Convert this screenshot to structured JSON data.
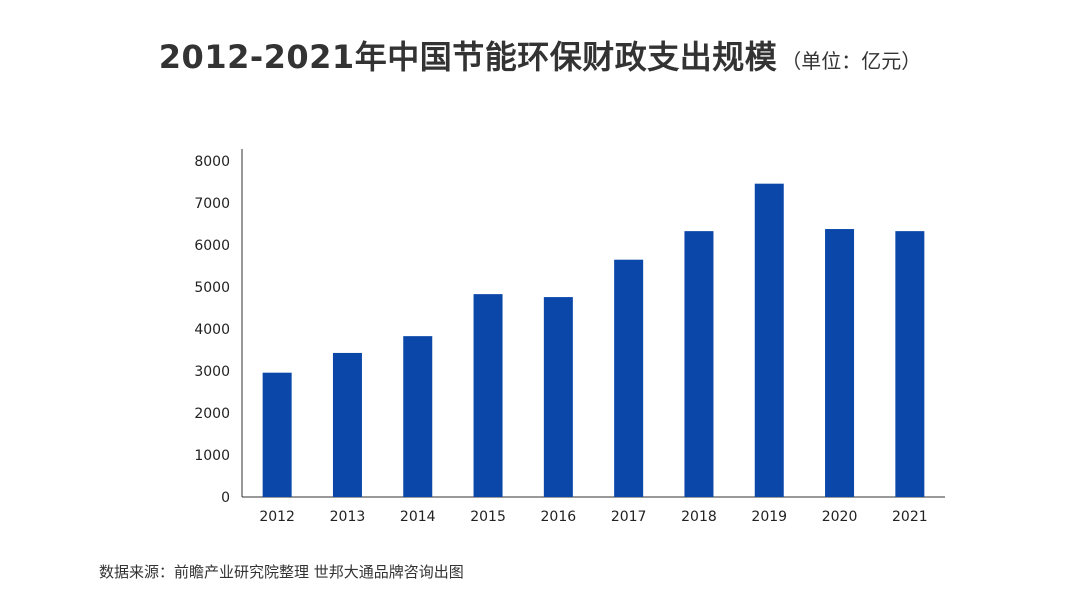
{
  "title": "2012-2021年中国节能环保财政支出规模",
  "unit": "（单位：亿元）",
  "source": "数据来源：前瞻产业研究院整理  世邦大通品牌咨询出图",
  "colors": {
    "bar": "#0a47a9",
    "axis": "#333333",
    "text": "#222222"
  },
  "chart_data": {
    "type": "bar",
    "title": "2012-2021年中国节能环保财政支出规模",
    "unit": "亿元",
    "categories": [
      "2012",
      "2013",
      "2014",
      "2015",
      "2016",
      "2017",
      "2018",
      "2019",
      "2020",
      "2021"
    ],
    "values": [
      2960,
      3430,
      3830,
      4830,
      4760,
      5650,
      6330,
      7460,
      6380,
      6330
    ],
    "ylim": [
      0,
      8000
    ],
    "yticks": [
      "0",
      "1000",
      "2000",
      "3000",
      "4000",
      "5000",
      "6000",
      "7000",
      "8000"
    ],
    "grid": false,
    "legend": "none"
  }
}
